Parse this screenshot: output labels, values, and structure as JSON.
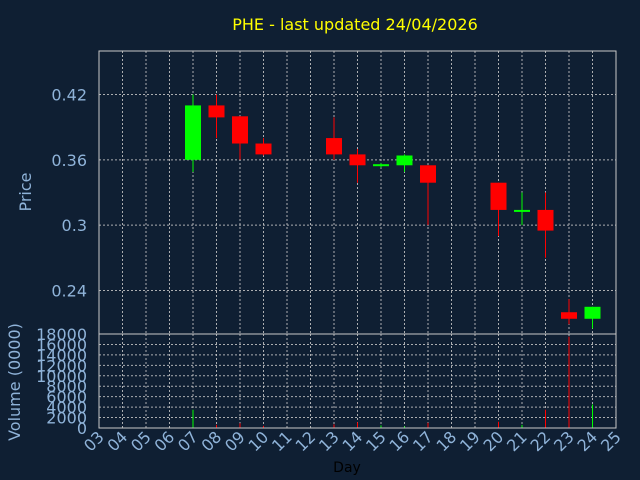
{
  "colors": {
    "background": "#0f1f33",
    "up": "#00ff00",
    "down": "#ff0000",
    "title": "#ffff00",
    "axis_text": "#8fb3d9",
    "grid": "#c8c8c8"
  },
  "chart_data": [
    {
      "type": "candlestick",
      "title": "PHE - last updated 24/04/2026",
      "ylabel": "Price",
      "ylim": [
        0.2,
        0.46
      ],
      "yticks": [
        "0.24",
        "0.3",
        "0.36",
        "0.42"
      ],
      "grid": true,
      "candles": [
        {
          "x": 7,
          "open": 0.36,
          "high": 0.42,
          "low": 0.349,
          "close": 0.41
        },
        {
          "x": 8,
          "open": 0.41,
          "high": 0.42,
          "low": 0.38,
          "close": 0.399
        },
        {
          "x": 9,
          "open": 0.4,
          "high": 0.4,
          "low": 0.36,
          "close": 0.375
        },
        {
          "x": 10,
          "open": 0.375,
          "high": 0.38,
          "low": 0.364,
          "close": 0.365
        },
        {
          "x": 13,
          "open": 0.38,
          "high": 0.399,
          "low": 0.36,
          "close": 0.365
        },
        {
          "x": 14,
          "open": 0.365,
          "high": 0.37,
          "low": 0.339,
          "close": 0.355
        },
        {
          "x": 15,
          "open": 0.355,
          "high": 0.357,
          "low": 0.353,
          "close": 0.356
        },
        {
          "x": 16,
          "open": 0.355,
          "high": 0.365,
          "low": 0.349,
          "close": 0.364
        },
        {
          "x": 17,
          "open": 0.355,
          "high": 0.355,
          "low": 0.3,
          "close": 0.339
        },
        {
          "x": 20,
          "open": 0.339,
          "high": 0.339,
          "low": 0.29,
          "close": 0.314
        },
        {
          "x": 21,
          "open": 0.313,
          "high": 0.33,
          "low": 0.3,
          "close": 0.314
        },
        {
          "x": 22,
          "open": 0.314,
          "high": 0.33,
          "low": 0.27,
          "close": 0.295
        },
        {
          "x": 23,
          "open": 0.22,
          "high": 0.232,
          "low": 0.209,
          "close": 0.214
        },
        {
          "x": 24,
          "open": 0.214,
          "high": 0.225,
          "low": 0.205,
          "close": 0.225
        }
      ]
    },
    {
      "type": "bar",
      "ylabel": "Volume (0000)",
      "xlabel": "Day",
      "ylim": [
        0,
        18000
      ],
      "yticks": [
        "0",
        "2000",
        "4000",
        "6000",
        "8000",
        "10000",
        "12000",
        "14000",
        "16000",
        "18000"
      ],
      "x_range": [
        3,
        25
      ],
      "categories": [
        "03",
        "04",
        "05",
        "06",
        "07",
        "08",
        "09",
        "10",
        "11",
        "12",
        "13",
        "14",
        "15",
        "16",
        "17",
        "18",
        "19",
        "20",
        "21",
        "22",
        "23",
        "24",
        "25"
      ],
      "grid": true,
      "bars": [
        {
          "x": 7,
          "value": 3500,
          "dir": "up"
        },
        {
          "x": 8,
          "value": 600,
          "dir": "down"
        },
        {
          "x": 9,
          "value": 900,
          "dir": "down"
        },
        {
          "x": 10,
          "value": 400,
          "dir": "down"
        },
        {
          "x": 13,
          "value": 700,
          "dir": "down"
        },
        {
          "x": 14,
          "value": 1100,
          "dir": "down"
        },
        {
          "x": 15,
          "value": 500,
          "dir": "up"
        },
        {
          "x": 16,
          "value": 300,
          "dir": "up"
        },
        {
          "x": 17,
          "value": 1000,
          "dir": "down"
        },
        {
          "x": 20,
          "value": 1200,
          "dir": "down"
        },
        {
          "x": 21,
          "value": 600,
          "dir": "up"
        },
        {
          "x": 22,
          "value": 3500,
          "dir": "down"
        },
        {
          "x": 23,
          "value": 17500,
          "dir": "down"
        },
        {
          "x": 24,
          "value": 4500,
          "dir": "up"
        }
      ]
    }
  ]
}
